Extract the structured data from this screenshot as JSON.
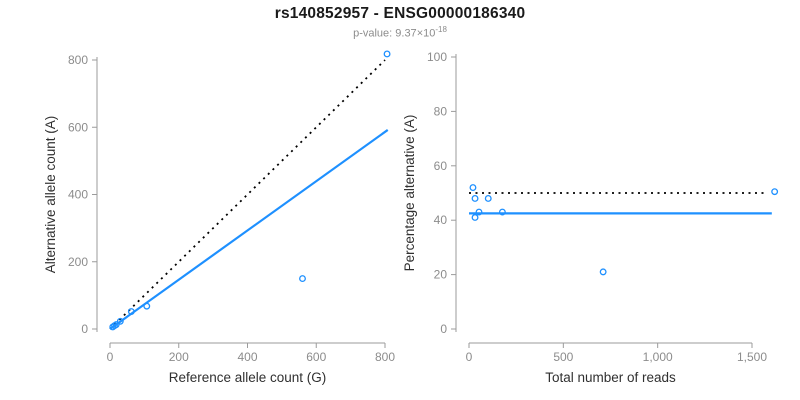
{
  "header": {
    "title": "rs140852957 - ENSG00000186340",
    "subtitle_prefix": "p-value: 9.37",
    "subtitle_times": "×10",
    "subtitle_exponent": "-18"
  },
  "colors": {
    "accent_blue": "#1E90FF",
    "dotted_black": "#000000",
    "axis_gray": "#9b9b9b",
    "tick_gray": "#8c8c8c",
    "label_dark": "#303030"
  },
  "chart_data": [
    {
      "type": "scatter",
      "title": "",
      "xlabel": "Reference allele count (G)",
      "ylabel": "Alternative allele count (A)",
      "xlim": [
        0,
        820
      ],
      "ylim": [
        0,
        825
      ],
      "grid": false,
      "legend": null,
      "xticks": {
        "values": [
          0,
          200,
          400,
          600,
          800
        ],
        "labels": [
          "0",
          "200",
          "400",
          "600",
          "800"
        ]
      },
      "yticks": {
        "values": [
          0,
          200,
          400,
          600,
          800
        ],
        "labels": [
          "0",
          "200",
          "400",
          "600",
          "800"
        ]
      },
      "points": [
        [
          8,
          6
        ],
        [
          13,
          10
        ],
        [
          18,
          13
        ],
        [
          30,
          23
        ],
        [
          62,
          52
        ],
        [
          107,
          68
        ],
        [
          560,
          150
        ],
        [
          806,
          818
        ]
      ],
      "lines": [
        {
          "name": "identity-dotted-line",
          "style": "dotted",
          "color": "#000000",
          "x1": 0,
          "y1": 0,
          "x2": 800,
          "y2": 800
        },
        {
          "name": "fit-line",
          "style": "solid",
          "color": "#1E90FF",
          "x1": 0,
          "y1": 0,
          "x2": 808,
          "y2": 592
        }
      ]
    },
    {
      "type": "scatter",
      "title": "",
      "xlabel": "Total number of reads",
      "ylabel": "Percentage alternative (A)",
      "xlim": [
        0,
        1650
      ],
      "ylim": [
        0,
        100
      ],
      "grid": false,
      "legend": null,
      "xticks": {
        "values": [
          0,
          500,
          1000,
          1500
        ],
        "labels": [
          "0",
          "500",
          "1,000",
          "1,500"
        ]
      },
      "yticks": {
        "values": [
          0,
          20,
          40,
          60,
          80,
          100
        ],
        "labels": [
          "0",
          "20",
          "40",
          "60",
          "80",
          "100"
        ]
      },
      "points": [
        [
          21,
          52
        ],
        [
          32,
          48
        ],
        [
          32,
          41
        ],
        [
          53,
          43
        ],
        [
          102,
          48
        ],
        [
          177,
          43
        ],
        [
          711,
          21
        ],
        [
          1620,
          50.5
        ]
      ],
      "lines": [
        {
          "name": "expected-percentage-dotted-line",
          "style": "dotted",
          "color": "#000000",
          "x1": 0,
          "y1": 50,
          "x2": 1570,
          "y2": 50
        },
        {
          "name": "observed-percentage-line",
          "style": "solid",
          "color": "#1E90FF",
          "x1": 0,
          "y1": 42.5,
          "x2": 1605,
          "y2": 42.5
        }
      ]
    }
  ]
}
